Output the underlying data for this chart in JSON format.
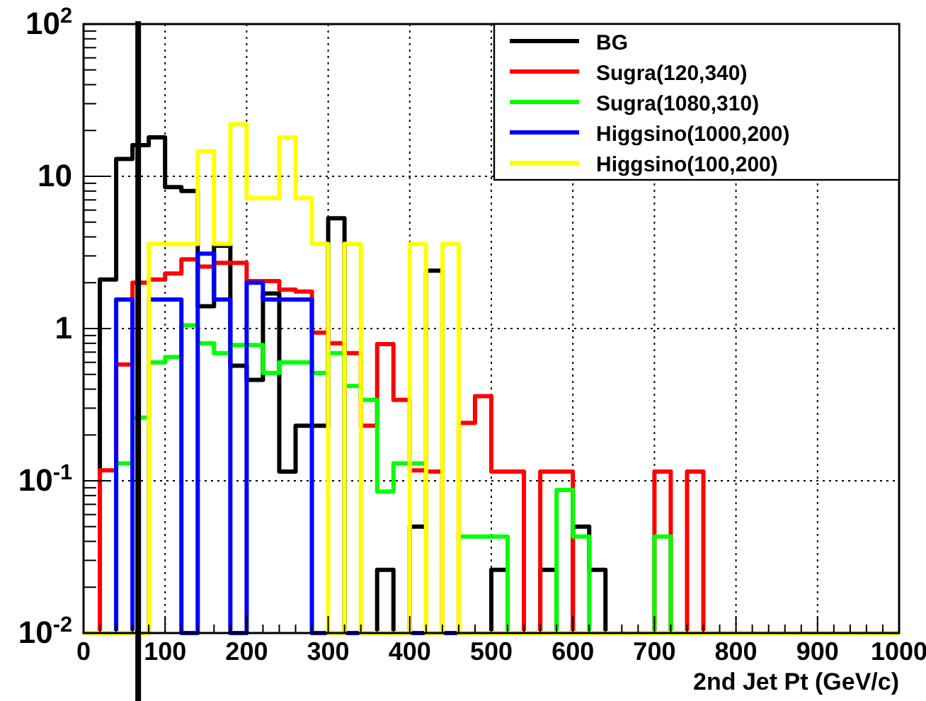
{
  "chart_data": {
    "type": "histogram",
    "xlabel": "2nd Jet Pt (GeV/c)",
    "bins": [
      0,
      20,
      40,
      60,
      80,
      100,
      120,
      140,
      160,
      180,
      200,
      220,
      240,
      260,
      280,
      300,
      320,
      340,
      360,
      380,
      400,
      420,
      440,
      460,
      480,
      500,
      520,
      540,
      560,
      580,
      600,
      620,
      640,
      660,
      680,
      700,
      720,
      740,
      760,
      780,
      800,
      820,
      840,
      860,
      880,
      900,
      920,
      940,
      960,
      980,
      1000
    ],
    "series": [
      {
        "name": "BG",
        "color": "#000000",
        "values": [
          null,
          2.1,
          13,
          16,
          18,
          8.5,
          8,
          1.4,
          3.5,
          0.57,
          0.46,
          1.7,
          0.115,
          0.23,
          0.23,
          5.3,
          null,
          null,
          0.026,
          null,
          0.05,
          2.4,
          null,
          null,
          null,
          0.026,
          null,
          null,
          0.026,
          null,
          0.05,
          0.026,
          null,
          null,
          null,
          null,
          null,
          null,
          null,
          null,
          null,
          null,
          null,
          null,
          null,
          null,
          null,
          null,
          null,
          null
        ]
      },
      {
        "name": "Sugra(120,340)",
        "color": "#ff0000",
        "values": [
          null,
          0.117,
          0.58,
          2.0,
          2.1,
          2.3,
          2.85,
          2.55,
          2.7,
          2.7,
          2.05,
          2.05,
          1.8,
          1.75,
          0.94,
          0.8,
          0.69,
          0.23,
          0.79,
          0.34,
          0.117,
          0.115,
          null,
          0.24,
          0.36,
          0.115,
          0.115,
          null,
          0.115,
          0.115,
          null,
          null,
          null,
          null,
          null,
          0.115,
          null,
          0.115,
          null,
          null,
          null,
          null,
          null,
          null,
          null,
          null,
          null,
          null,
          null,
          null
        ]
      },
      {
        "name": "Sugra(1080,310)",
        "color": "#00ff00",
        "values": [
          null,
          null,
          0.13,
          0.26,
          0.6,
          0.65,
          1.05,
          0.8,
          0.69,
          0.78,
          0.78,
          0.51,
          0.6,
          0.6,
          0.51,
          0.69,
          0.42,
          0.34,
          0.085,
          0.13,
          0.13,
          null,
          null,
          0.043,
          0.043,
          0.043,
          null,
          null,
          null,
          0.087,
          0.043,
          null,
          null,
          null,
          null,
          0.043,
          null,
          null,
          null,
          null,
          null,
          null,
          null,
          null,
          null,
          null,
          null,
          null,
          null,
          null
        ]
      },
      {
        "name": "Higgsino(1000,200)",
        "color": "#0000ff",
        "values": [
          null,
          null,
          1.55,
          null,
          1.55,
          1.55,
          null,
          3.1,
          1.55,
          null,
          2.0,
          1.55,
          1.55,
          1.55,
          null,
          null,
          null,
          null,
          null,
          null,
          null,
          null,
          null,
          null,
          null,
          null,
          null,
          null,
          null,
          null,
          null,
          null,
          null,
          null,
          null,
          null,
          null,
          null,
          null,
          null,
          null,
          null,
          null,
          null,
          null,
          null,
          null,
          null,
          null,
          null
        ]
      },
      {
        "name": "Higgsino(100,200)",
        "color": "#ffff00",
        "values": [
          null,
          null,
          null,
          null,
          3.6,
          3.6,
          3.6,
          14.6,
          3.6,
          22,
          7.2,
          7.2,
          18,
          7.2,
          3.6,
          null,
          3.6,
          null,
          null,
          null,
          3.6,
          null,
          3.6,
          null,
          null,
          null,
          null,
          null,
          null,
          null,
          null,
          null,
          null,
          null,
          null,
          null,
          null,
          null,
          null,
          null,
          null,
          null,
          null,
          null,
          null,
          null,
          null,
          null,
          null,
          null
        ]
      }
    ],
    "xlim": [
      0,
      1000
    ],
    "xticks": [
      0,
      100,
      200,
      300,
      400,
      500,
      600,
      700,
      800,
      900,
      1000
    ],
    "ylim": [
      0.01,
      100
    ],
    "yticks": [
      {
        "value": 0.01,
        "label": "10$^{-2}$"
      },
      {
        "value": 0.1,
        "label": "10$^{-1}$"
      },
      1,
      10,
      {
        "value": 100,
        "label": "10$^{2}$"
      }
    ],
    "log": true,
    "grid": true,
    "legend": "top right",
    "ref_lines": [
      {
        "axis": "x",
        "value": 67,
        "color": "#000000"
      }
    ]
  }
}
